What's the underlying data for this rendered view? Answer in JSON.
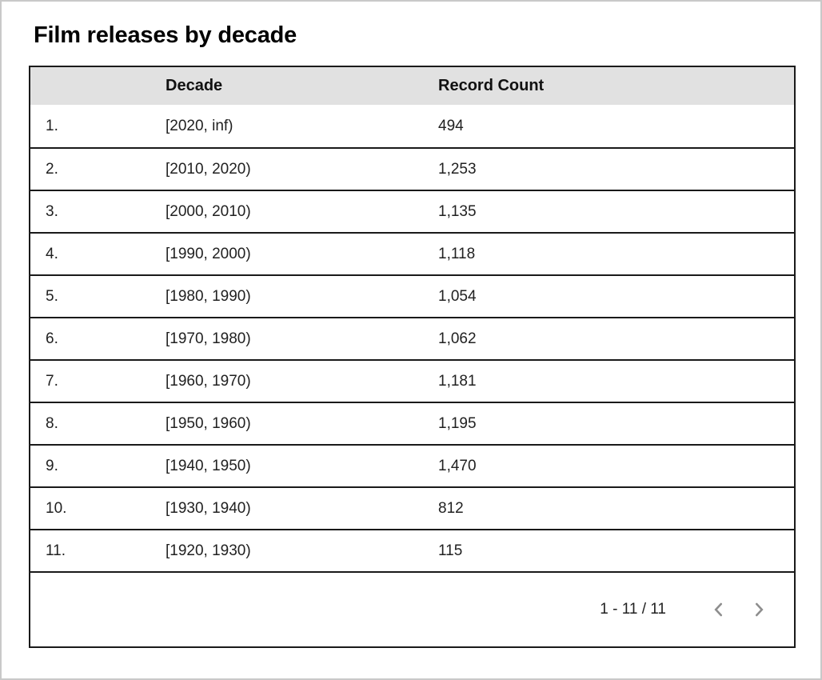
{
  "page": {
    "title": "Film releases by decade"
  },
  "table": {
    "columns": {
      "decade": "Decade",
      "count": "Record Count"
    },
    "rows": [
      {
        "index": "1.",
        "decade": "[2020, inf)",
        "count": "494"
      },
      {
        "index": "2.",
        "decade": "[2010, 2020)",
        "count": "1,253"
      },
      {
        "index": "3.",
        "decade": "[2000, 2010)",
        "count": "1,135"
      },
      {
        "index": "4.",
        "decade": "[1990, 2000)",
        "count": "1,118"
      },
      {
        "index": "5.",
        "decade": "[1980, 1990)",
        "count": "1,054"
      },
      {
        "index": "6.",
        "decade": "[1970, 1980)",
        "count": "1,062"
      },
      {
        "index": "7.",
        "decade": "[1960, 1970)",
        "count": "1,181"
      },
      {
        "index": "8.",
        "decade": "[1950, 1960)",
        "count": "1,195"
      },
      {
        "index": "9.",
        "decade": "[1940, 1950)",
        "count": "1,470"
      },
      {
        "index": "10.",
        "decade": "[1930, 1940)",
        "count": "812"
      },
      {
        "index": "11.",
        "decade": "[1920, 1930)",
        "count": "115"
      }
    ]
  },
  "pagination": {
    "range_label": "1 - 11 / 11",
    "prev_icon": "chevron-left",
    "next_icon": "chevron-right"
  },
  "colors": {
    "header_bg": "#e1e1e1",
    "table_border": "#1a1a1a",
    "cell_text": "#212121",
    "chevron": "#8e8e8e",
    "outer_border": "#c9c9c9"
  },
  "chart_data": {
    "type": "table",
    "title": "Film releases by decade",
    "columns": [
      "Decade",
      "Record Count"
    ],
    "categories": [
      "[2020, inf)",
      "[2010, 2020)",
      "[2000, 2010)",
      "[1990, 2000)",
      "[1980, 1990)",
      "[1970, 1980)",
      "[1960, 1970)",
      "[1950, 1960)",
      "[1940, 1950)",
      "[1930, 1940)",
      "[1920, 1930)"
    ],
    "values": [
      494,
      1253,
      1135,
      1118,
      1054,
      1062,
      1181,
      1195,
      1470,
      812,
      115
    ],
    "row_range_shown": "1 - 11 / 11",
    "total_rows": 11
  }
}
